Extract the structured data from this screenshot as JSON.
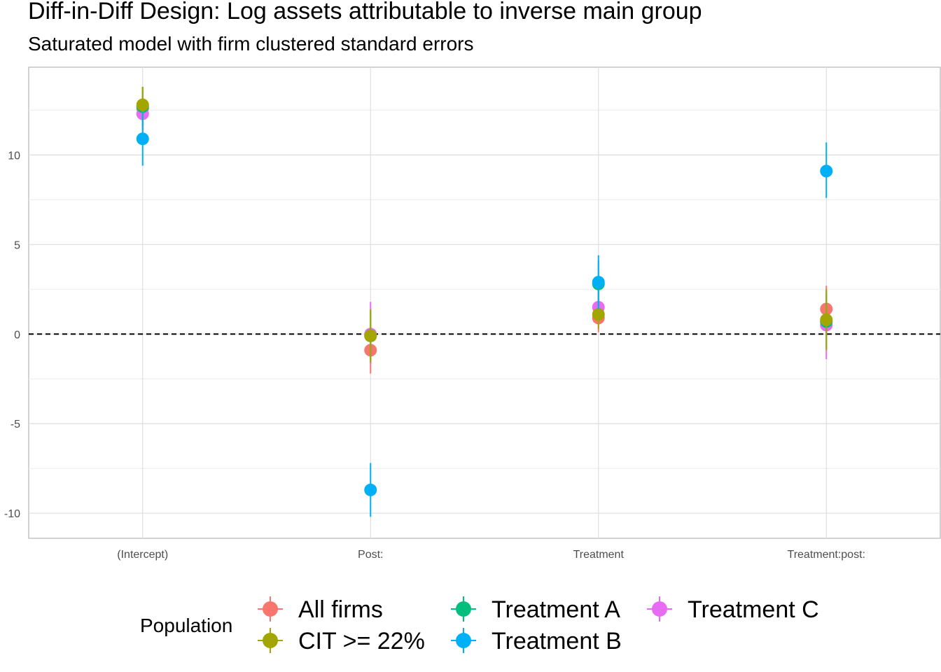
{
  "chart_data": {
    "type": "scatter",
    "title": "Diff-in-Diff Design: Log assets attributable to inverse main group",
    "subtitle": "Saturated model with firm clustered standard errors",
    "xlabel": "",
    "ylabel": "",
    "categories": [
      "(Intercept)",
      "Post:",
      "Treatment",
      "Treatment:post:"
    ],
    "ylim": [
      -11.4,
      14.9
    ],
    "yticks": [
      -10,
      -5,
      0,
      5,
      10
    ],
    "ytick_labels": [
      "-10",
      "-5",
      "0",
      "5",
      "10"
    ],
    "reference_line": 0,
    "grid": true,
    "legend_title": "Population",
    "legend_position": "bottom",
    "series": [
      {
        "name": "All firms",
        "color": "#F8766D",
        "values": [
          12.6,
          -0.9,
          0.9,
          1.4
        ],
        "lower": [
          11.4,
          -2.2,
          0.1,
          0.1
        ],
        "upper": [
          13.8,
          0.4,
          1.7,
          2.7
        ]
      },
      {
        "name": "CIT >= 22%",
        "color": "#A3A500",
        "values": [
          12.8,
          -0.1,
          1.1,
          0.8
        ],
        "lower": [
          11.8,
          -1.6,
          0.3,
          -0.9
        ],
        "upper": [
          13.8,
          1.4,
          1.9,
          2.5
        ]
      },
      {
        "name": "Treatment A",
        "color": "#00BF7D",
        "values": [
          12.7,
          -0.1,
          2.8,
          0.7
        ],
        "lower": [
          11.6,
          -1.5,
          1.5,
          -0.8
        ],
        "upper": [
          13.8,
          1.3,
          4.1,
          2.2
        ]
      },
      {
        "name": "Treatment B",
        "color": "#00B0F6",
        "values": [
          10.9,
          -8.7,
          2.9,
          9.1
        ],
        "lower": [
          9.4,
          -10.2,
          1.4,
          7.6
        ],
        "upper": [
          12.4,
          -7.2,
          4.4,
          10.7
        ]
      },
      {
        "name": "Treatment C",
        "color": "#E76BF3",
        "values": [
          12.3,
          0.0,
          1.5,
          0.5
        ],
        "lower": [
          11.0,
          -1.7,
          0.5,
          -1.4
        ],
        "upper": [
          13.6,
          1.8,
          2.5,
          2.4
        ]
      }
    ],
    "legend_rows": [
      [
        "All firms",
        "Treatment A",
        "Treatment C"
      ],
      [
        "CIT >= 22%",
        "Treatment B"
      ]
    ],
    "draw_order": [
      "All firms",
      "Treatment C",
      "Treatment A",
      "CIT >= 22%",
      "Treatment B"
    ]
  }
}
